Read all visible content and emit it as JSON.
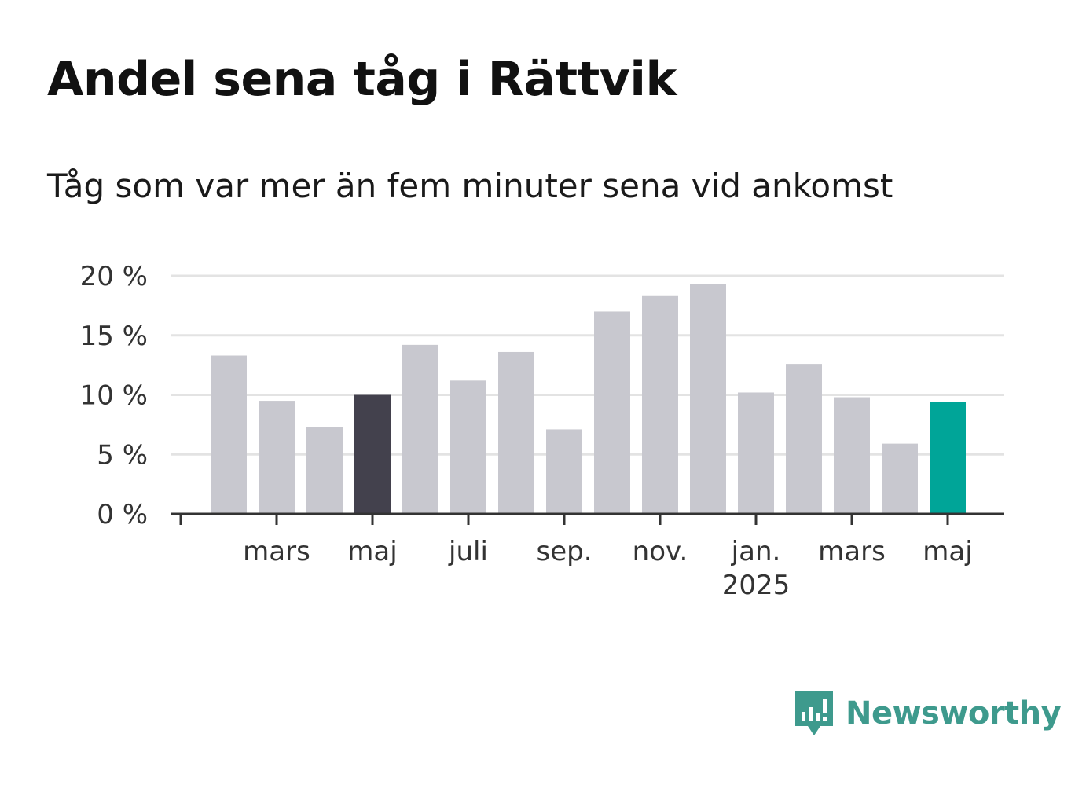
{
  "title": "Andel sena tåg i Rättvik",
  "subtitle": "Tåg som var mer än fem minuter sena vid ankomst",
  "brand": {
    "name": "Newsworthy",
    "color": "#3e9a8d",
    "icon": "newsworthy-logo-icon"
  },
  "colors": {
    "default_bar": "#c8c8cf",
    "highlight_bar": "#43414d",
    "latest_bar": "#00a598",
    "grid": "#e3e3e3",
    "axis": "#333333"
  },
  "chart_data": {
    "type": "bar",
    "title": "Andel sena tåg i Rättvik",
    "subtitle": "Tåg som var mer än fem minuter sena vid ankomst",
    "x": [
      "2024-02",
      "2024-03",
      "2024-04",
      "2024-05",
      "2024-06",
      "2024-07",
      "2024-08",
      "2024-09",
      "2024-10",
      "2024-11",
      "2024-12",
      "2025-01",
      "2025-02",
      "2025-03",
      "2025-04",
      "2025-05"
    ],
    "values": [
      13.3,
      9.5,
      7.3,
      10.0,
      14.2,
      11.2,
      13.6,
      7.1,
      17.0,
      18.3,
      19.3,
      10.2,
      12.6,
      9.8,
      5.9,
      9.4
    ],
    "highlight": {
      "2024-05": "dark",
      "2025-05": "latest"
    },
    "ylim": [
      0,
      20
    ],
    "y_ticks": [
      {
        "value": 0,
        "label": "0 %"
      },
      {
        "value": 5,
        "label": "5 %"
      },
      {
        "value": 10,
        "label": "10 %"
      },
      {
        "value": 15,
        "label": "15 %"
      },
      {
        "value": 20,
        "label": "20 %"
      }
    ],
    "x_ticks": [
      {
        "at": "2024-03",
        "label": "mars",
        "sub": ""
      },
      {
        "at": "2024-05",
        "label": "maj",
        "sub": ""
      },
      {
        "at": "2024-07",
        "label": "juli",
        "sub": ""
      },
      {
        "at": "2024-09",
        "label": "sep.",
        "sub": ""
      },
      {
        "at": "2024-11",
        "label": "nov.",
        "sub": ""
      },
      {
        "at": "2025-01",
        "label": "jan.",
        "sub": "2025"
      },
      {
        "at": "2025-03",
        "label": "mars",
        "sub": ""
      },
      {
        "at": "2025-05",
        "label": "maj",
        "sub": ""
      }
    ],
    "grid": true,
    "legend": "none"
  }
}
